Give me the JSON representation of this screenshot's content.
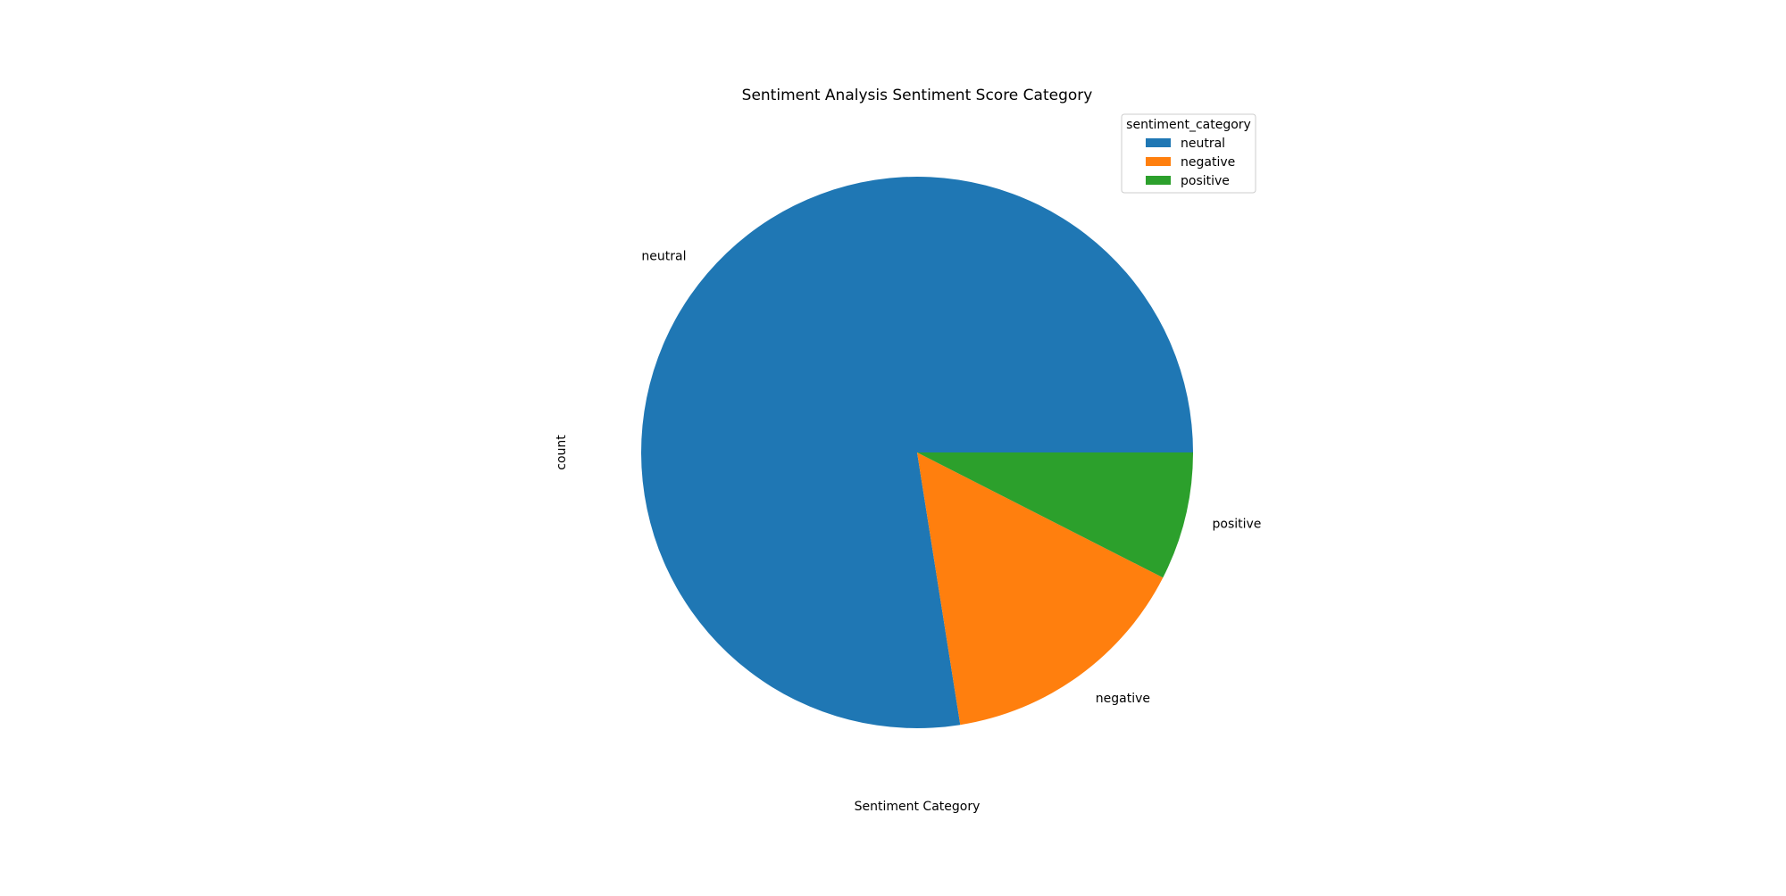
{
  "chart_data": {
    "type": "pie",
    "title": "Sentiment Analysis Sentiment Score Category",
    "xlabel": "Sentiment Category",
    "ylabel": "count",
    "categories": [
      "neutral",
      "negative",
      "positive"
    ],
    "values": [
      77.5,
      15.0,
      7.5
    ],
    "colors": [
      "#1f77b4",
      "#ff7f0e",
      "#2ca02c"
    ],
    "start_angle_degrees": 0,
    "direction": "counterclockwise",
    "legend": {
      "title": "sentiment_category",
      "placement": "upper-right",
      "entries": [
        "neutral",
        "negative",
        "positive"
      ]
    }
  }
}
